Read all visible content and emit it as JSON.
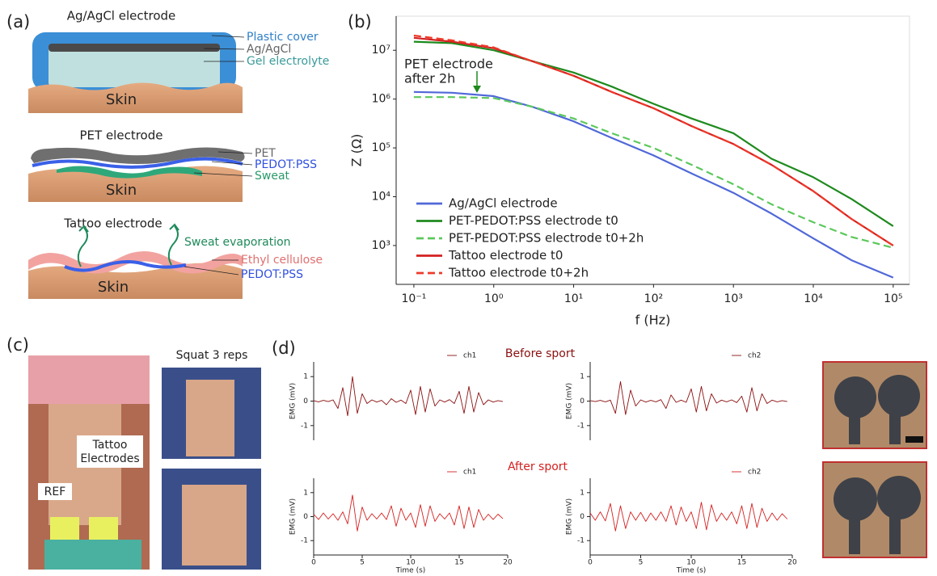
{
  "panel_labels": [
    "(a)",
    "(b)",
    "(c)",
    "(d)"
  ],
  "diagram": {
    "agagcl": {
      "title": "Ag/AgCl electrode",
      "labels": [
        "Plastic cover",
        "Ag/AgCl",
        "Gel electrolyte"
      ],
      "skin": "Skin"
    },
    "pet": {
      "title": "PET electrode",
      "labels": [
        "PET",
        "PEDOT:PSS",
        "Sweat"
      ],
      "skin": "Skin"
    },
    "tattoo": {
      "title": "Tattoo electrode",
      "labels": [
        "Sweat evaporation",
        "Ethyl cellulose",
        "PEDOT:PSS"
      ],
      "skin": "Skin"
    }
  },
  "photos": {
    "title": "Squat 3 reps",
    "labels": [
      "Tattoo",
      "Electrodes",
      "REF"
    ]
  },
  "row_titles": [
    "Before sport",
    "After sport"
  ],
  "chart_data": [
    {
      "type": "line",
      "xlabel": "f (Hz)",
      "ylabel": "Z (Ω)",
      "log_x": true,
      "log_y": true,
      "x": [
        0.1,
        0.3,
        1,
        3,
        10,
        30,
        100,
        300,
        1000,
        3000,
        10000,
        30000,
        100000
      ],
      "xlim": [
        0.06,
        160000
      ],
      "ylim": [
        160,
        50000000
      ],
      "xticks": [
        {
          "value": 0.1,
          "label": "10⁻¹"
        },
        {
          "value": 1,
          "label": "10⁰"
        },
        {
          "value": 10,
          "label": "10¹"
        },
        {
          "value": 100,
          "label": "10²"
        },
        {
          "value": 1000,
          "label": "10³"
        },
        {
          "value": 10000,
          "label": "10⁴"
        },
        {
          "value": 100000,
          "label": "10⁵"
        }
      ],
      "yticks": [
        {
          "value": 1000,
          "label": "10³"
        },
        {
          "value": 10000,
          "label": "10⁴"
        },
        {
          "value": 100000,
          "label": "10⁵"
        },
        {
          "value": 1000000,
          "label": "10⁶"
        },
        {
          "value": 10000000,
          "label": "10⁷"
        }
      ],
      "legend": "lower left",
      "annotation": [
        "PET electrode",
        "after 2h"
      ],
      "series": [
        {
          "name": "Ag/AgCl electrode",
          "color": "#5068d8",
          "dash": false,
          "values": [
            1400000,
            1350000,
            1150000,
            700000,
            350000,
            160000,
            70000,
            30000,
            12000,
            4500,
            1400,
            500,
            220
          ]
        },
        {
          "name": "PET-PEDOT:PSS electrode t0",
          "color": "#1e8a1e",
          "dash": false,
          "values": [
            15000000,
            14000000,
            10000000,
            6000000,
            3500000,
            1800000,
            800000,
            400000,
            200000,
            60000,
            25000,
            9000,
            2500
          ]
        },
        {
          "name": "PET-PEDOT:PSS electrode t0+2h",
          "color": "#5cc85c",
          "dash": true,
          "values": [
            1100000,
            1100000,
            1050000,
            700000,
            400000,
            200000,
            100000,
            45000,
            18000,
            7000,
            3000,
            1500,
            900
          ]
        },
        {
          "name": "Tattoo electrode t0",
          "color": "#d42020",
          "dash": false,
          "values": [
            18000000,
            15000000,
            11000000,
            6000000,
            3000000,
            1400000,
            650000,
            280000,
            120000,
            45000,
            13000,
            3500,
            1000
          ]
        },
        {
          "name": "Tattoo electrode t0+2h",
          "color": "#ee3a2a",
          "dash": true,
          "values": [
            20000000,
            16000000,
            11500000,
            6000000,
            3000000,
            1400000,
            650000,
            280000,
            120000,
            45000,
            13000,
            3500,
            1000
          ]
        }
      ]
    },
    {
      "type": "line",
      "ylabel": "EMG (mV)",
      "xlim": [
        0,
        20
      ],
      "ylim": [
        -1.6,
        1.6
      ],
      "yticks": [
        -1,
        0,
        1
      ],
      "legend": "upper right",
      "x": [
        0,
        0.5,
        1,
        1.5,
        2,
        2.5,
        3,
        3.5,
        4,
        4.5,
        5,
        5.5,
        6,
        6.5,
        7,
        7.5,
        8,
        8.5,
        9,
        9.5,
        10,
        10.5,
        11,
        11.5,
        12,
        12.5,
        13,
        13.5,
        14,
        14.5,
        15,
        15.5,
        16,
        16.5,
        17,
        17.5,
        18,
        18.5,
        19,
        19.5
      ],
      "series": [
        {
          "name": "ch1",
          "color": "#8b1010",
          "values": [
            0.02,
            -0.03,
            0.03,
            -0.02,
            0.05,
            -0.3,
            0.55,
            -0.6,
            1.0,
            -0.5,
            0.3,
            -0.1,
            0.05,
            -0.04,
            0.03,
            -0.15,
            0.1,
            -0.05,
            0.04,
            -0.1,
            0.45,
            -0.55,
            0.6,
            -0.45,
            0.5,
            -0.2,
            0.05,
            -0.04,
            0.06,
            -0.1,
            0.4,
            -0.5,
            0.6,
            -0.45,
            0.35,
            -0.15,
            0.05,
            -0.04,
            0.02,
            -0.02
          ]
        }
      ]
    },
    {
      "type": "line",
      "ylabel": "EMG (mV)",
      "xlim": [
        0,
        20
      ],
      "ylim": [
        -1.6,
        1.6
      ],
      "yticks": [
        -1,
        0,
        1
      ],
      "legend": "upper right",
      "x": [
        0,
        0.5,
        1,
        1.5,
        2,
        2.5,
        3,
        3.5,
        4,
        4.5,
        5,
        5.5,
        6,
        6.5,
        7,
        7.5,
        8,
        8.5,
        9,
        9.5,
        10,
        10.5,
        11,
        11.5,
        12,
        12.5,
        13,
        13.5,
        14,
        14.5,
        15,
        15.5,
        16,
        16.5,
        17,
        17.5,
        18,
        18.5,
        19,
        19.5
      ],
      "series": [
        {
          "name": "ch2",
          "color": "#8b1010",
          "values": [
            0.02,
            -0.02,
            0.03,
            -0.03,
            0.04,
            -0.5,
            0.8,
            -0.55,
            0.45,
            -0.2,
            0.05,
            -0.04,
            0.03,
            -0.03,
            0.06,
            -0.3,
            0.25,
            -0.05,
            0.04,
            -0.05,
            0.5,
            -0.45,
            0.6,
            -0.4,
            0.3,
            -0.08,
            0.04,
            -0.03,
            0.05,
            -0.06,
            0.2,
            -0.45,
            0.55,
            -0.4,
            0.3,
            -0.1,
            0.04,
            -0.03,
            0.02,
            -0.02
          ]
        }
      ]
    },
    {
      "type": "line",
      "xlabel": "Time (s)",
      "ylabel": "EMG (mV)",
      "xlim": [
        0,
        20
      ],
      "ylim": [
        -1.6,
        1.6
      ],
      "xticks": [
        0,
        5,
        10,
        15,
        20
      ],
      "yticks": [
        -1,
        0,
        1
      ],
      "legend": "upper right",
      "x": [
        0,
        0.5,
        1,
        1.5,
        2,
        2.5,
        3,
        3.5,
        4,
        4.5,
        5,
        5.5,
        6,
        6.5,
        7,
        7.5,
        8,
        8.5,
        9,
        9.5,
        10,
        10.5,
        11,
        11.5,
        12,
        12.5,
        13,
        13.5,
        14,
        14.5,
        15,
        15.5,
        16,
        16.5,
        17,
        17.5,
        18,
        18.5,
        19,
        19.5
      ],
      "series": [
        {
          "name": "ch1",
          "color": "#d42020",
          "values": [
            0.1,
            -0.12,
            0.15,
            -0.1,
            0.12,
            -0.15,
            0.2,
            -0.3,
            0.9,
            -0.6,
            0.4,
            -0.15,
            0.12,
            -0.1,
            0.15,
            -0.12,
            0.45,
            -0.4,
            0.35,
            -0.15,
            0.15,
            -0.45,
            0.5,
            -0.4,
            0.45,
            -0.2,
            0.12,
            -0.1,
            0.15,
            -0.35,
            0.45,
            -0.5,
            0.4,
            -0.45,
            0.3,
            -0.15,
            0.1,
            -0.12,
            0.1,
            -0.08
          ]
        }
      ]
    },
    {
      "type": "line",
      "xlabel": "Time (s)",
      "ylabel": "EMG (mV)",
      "xlim": [
        0,
        20
      ],
      "ylim": [
        -1.6,
        1.6
      ],
      "xticks": [
        0,
        5,
        10,
        15,
        20
      ],
      "yticks": [
        -1,
        0,
        1
      ],
      "legend": "upper right",
      "x": [
        0,
        0.5,
        1,
        1.5,
        2,
        2.5,
        3,
        3.5,
        4,
        4.5,
        5,
        5.5,
        6,
        6.5,
        7,
        7.5,
        8,
        8.5,
        9,
        9.5,
        10,
        10.5,
        11,
        11.5,
        12,
        12.5,
        13,
        13.5,
        14,
        14.5,
        15,
        15.5,
        16,
        16.5,
        17,
        17.5,
        18,
        18.5,
        19,
        19.5
      ],
      "series": [
        {
          "name": "ch2",
          "color": "#d42020",
          "values": [
            0.15,
            -0.15,
            0.2,
            -0.18,
            0.55,
            -0.6,
            0.45,
            -0.5,
            0.2,
            -0.15,
            0.18,
            -0.2,
            0.15,
            -0.15,
            0.2,
            -0.2,
            0.45,
            -0.35,
            0.4,
            -0.2,
            0.2,
            -0.5,
            0.6,
            -0.55,
            0.5,
            -0.2,
            0.15,
            -0.15,
            0.2,
            -0.3,
            0.45,
            -0.5,
            0.55,
            -0.45,
            0.35,
            -0.2,
            0.15,
            -0.15,
            0.12,
            -0.1
          ]
        }
      ]
    }
  ]
}
